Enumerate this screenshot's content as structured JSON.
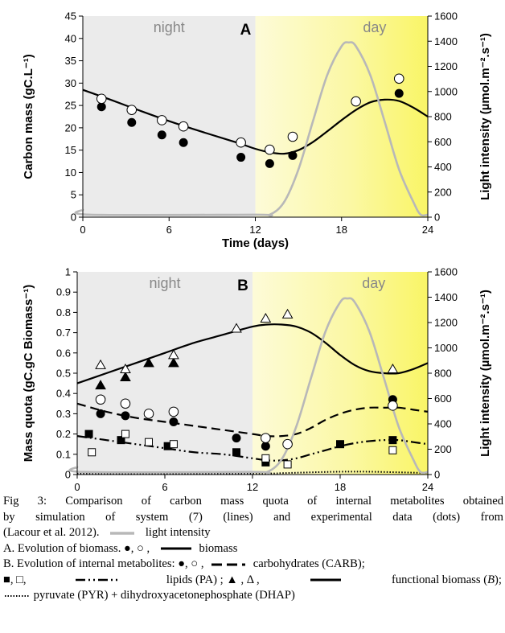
{
  "chart_data": [
    {
      "type": "line+scatter",
      "panel_label": "A",
      "regions": [
        {
          "label": "night",
          "x": [
            0,
            12
          ]
        },
        {
          "label": "day",
          "x": [
            12,
            24
          ]
        }
      ],
      "xlabel": "Time (days)",
      "ylabel": "Carbon mass (gC.L⁻¹)",
      "y2label": "Light intensity (µmol.m⁻².s⁻¹)",
      "xlim": [
        0,
        24
      ],
      "ylim": [
        0,
        45
      ],
      "y2lim": [
        0,
        1600
      ],
      "xticks": [
        0,
        6,
        12,
        18,
        24
      ],
      "yticks": [
        0,
        5,
        10,
        15,
        20,
        25,
        30,
        35,
        40,
        45
      ],
      "y2ticks": [
        0,
        200,
        400,
        600,
        800,
        1000,
        1200,
        1400,
        1600
      ],
      "series": [
        {
          "key": "biomass_sim",
          "kind": "line",
          "style": "solid",
          "color": "#000000",
          "axis": "left",
          "x": [
            0,
            2,
            4,
            6,
            8,
            10,
            11,
            12,
            13,
            14,
            15,
            16,
            17,
            18,
            19,
            20,
            21,
            22,
            23,
            24
          ],
          "y": [
            28.5,
            26.2,
            23.8,
            21.5,
            19.4,
            17.4,
            16.4,
            15.3,
            14.5,
            14.2,
            15.0,
            16.8,
            19.2,
            21.7,
            24.0,
            25.7,
            26.3,
            26.0,
            24.5,
            22.5
          ]
        },
        {
          "key": "biomass_obs_filled",
          "kind": "scatter",
          "marker": "circle-filled",
          "axis": "left",
          "x": [
            1.3,
            3.4,
            5.5,
            7.0,
            11.0,
            13.0,
            14.6,
            22.0
          ],
          "y": [
            24.7,
            21.2,
            18.4,
            16.7,
            13.4,
            12.0,
            13.8,
            27.7
          ]
        },
        {
          "key": "biomass_obs_open",
          "kind": "scatter",
          "marker": "circle-open",
          "axis": "left",
          "x": [
            1.3,
            3.4,
            5.5,
            7.0,
            11.0,
            13.0,
            14.6,
            19.0,
            22.0
          ],
          "y": [
            26.5,
            24.0,
            21.7,
            20.3,
            16.7,
            15.1,
            18.0,
            25.9,
            31.0
          ]
        },
        {
          "key": "light_intensity",
          "kind": "line",
          "style": "solid",
          "color": "#b8b8b8",
          "axis": "right",
          "x": [
            0,
            0.5,
            12,
            13,
            14,
            15,
            16,
            17,
            18,
            18.5,
            19,
            20,
            21,
            22,
            23,
            23.5,
            24
          ],
          "y": [
            60,
            20,
            20,
            20,
            120,
            380,
            760,
            1130,
            1360,
            1390,
            1360,
            1130,
            760,
            380,
            120,
            20,
            20
          ]
        }
      ]
    },
    {
      "type": "line+scatter",
      "panel_label": "B",
      "regions": [
        {
          "label": "night",
          "x": [
            0,
            12
          ]
        },
        {
          "label": "day",
          "x": [
            12,
            24
          ]
        }
      ],
      "xlabel": "",
      "ylabel": "Mass quota (gC.gC Biomass⁻¹)",
      "y2label": "Light intensity (µmol.m⁻².s⁻¹)",
      "xlim": [
        0,
        24
      ],
      "ylim": [
        0,
        1
      ],
      "y2lim": [
        0,
        1600
      ],
      "xticks": [
        0,
        6,
        12,
        18,
        24
      ],
      "yticks": [
        0,
        0.1,
        0.2,
        0.3,
        0.4,
        0.5,
        0.6,
        0.7,
        0.8,
        0.9,
        1
      ],
      "y2ticks": [
        0,
        200,
        400,
        600,
        800,
        1000,
        1200,
        1400,
        1600
      ],
      "series": [
        {
          "key": "functional_sim",
          "kind": "line",
          "style": "solid",
          "color": "#000000",
          "axis": "left",
          "x": [
            0,
            2,
            4,
            6,
            8,
            10,
            12,
            13,
            14,
            15,
            16,
            17,
            18,
            19,
            20,
            21,
            22,
            23,
            24
          ],
          "y": [
            0.45,
            0.5,
            0.55,
            0.6,
            0.65,
            0.69,
            0.73,
            0.74,
            0.74,
            0.73,
            0.7,
            0.65,
            0.59,
            0.54,
            0.51,
            0.5,
            0.5,
            0.52,
            0.55
          ]
        },
        {
          "key": "carb_sim",
          "kind": "line",
          "style": "dashed",
          "color": "#000000",
          "axis": "left",
          "x": [
            0,
            2,
            4,
            6,
            8,
            10,
            12,
            13,
            14,
            15,
            16,
            17,
            18,
            19,
            20,
            21,
            22,
            23,
            24
          ],
          "y": [
            0.35,
            0.31,
            0.28,
            0.26,
            0.24,
            0.22,
            0.2,
            0.19,
            0.19,
            0.2,
            0.23,
            0.27,
            0.3,
            0.32,
            0.33,
            0.33,
            0.33,
            0.32,
            0.31
          ]
        },
        {
          "key": "lipids_sim",
          "kind": "line",
          "style": "dashdotdot",
          "color": "#000000",
          "axis": "left",
          "x": [
            0,
            2,
            4,
            6,
            8,
            10,
            12,
            13,
            14,
            15,
            16,
            17,
            18,
            19,
            20,
            21,
            22,
            23,
            24
          ],
          "y": [
            0.19,
            0.17,
            0.15,
            0.13,
            0.11,
            0.1,
            0.08,
            0.07,
            0.07,
            0.08,
            0.1,
            0.12,
            0.14,
            0.155,
            0.165,
            0.17,
            0.17,
            0.16,
            0.15
          ]
        },
        {
          "key": "pyr_dhap_sim",
          "kind": "line",
          "style": "dotted",
          "color": "#000000",
          "axis": "left",
          "x": [
            0,
            12,
            14,
            16,
            18,
            20,
            22,
            24
          ],
          "y": [
            0.005,
            0.005,
            0.007,
            0.011,
            0.014,
            0.014,
            0.011,
            0.008
          ]
        },
        {
          "key": "light_intensity",
          "kind": "line",
          "style": "solid",
          "color": "#b8b8b8",
          "axis": "right",
          "x": [
            0,
            0.5,
            12,
            13,
            14,
            15,
            16,
            17,
            18,
            18.5,
            19,
            20,
            21,
            22,
            23,
            23.5,
            24
          ],
          "y": [
            60,
            20,
            20,
            20,
            120,
            380,
            760,
            1130,
            1360,
            1390,
            1360,
            1130,
            760,
            380,
            120,
            20,
            20
          ]
        },
        {
          "key": "functional_obs_filled",
          "kind": "scatter",
          "marker": "triangle-filled",
          "axis": "left",
          "x": [
            1.6,
            3.3,
            4.9,
            6.6
          ],
          "y": [
            0.44,
            0.48,
            0.55,
            0.55
          ]
        },
        {
          "key": "functional_obs_open",
          "kind": "scatter",
          "marker": "triangle-open",
          "axis": "left",
          "x": [
            1.6,
            3.3,
            6.6,
            10.9,
            12.9,
            14.4,
            21.6
          ],
          "y": [
            0.54,
            0.52,
            0.59,
            0.72,
            0.77,
            0.79,
            0.52
          ]
        },
        {
          "key": "carb_obs_filled",
          "kind": "scatter",
          "marker": "circle-filled",
          "axis": "left",
          "x": [
            1.6,
            3.3,
            6.6,
            10.9,
            12.9,
            14.4,
            21.6
          ],
          "y": [
            0.3,
            0.29,
            0.26,
            0.18,
            0.14,
            0.15,
            0.37
          ]
        },
        {
          "key": "carb_obs_open",
          "kind": "scatter",
          "marker": "circle-open",
          "axis": "left",
          "x": [
            1.6,
            3.3,
            4.9,
            6.6,
            12.9,
            14.4,
            21.6
          ],
          "y": [
            0.37,
            0.35,
            0.3,
            0.31,
            0.18,
            0.15,
            0.34
          ]
        },
        {
          "key": "lipids_obs_filled",
          "kind": "scatter",
          "marker": "square-filled",
          "axis": "left",
          "x": [
            0.8,
            3.0,
            6.2,
            10.9,
            12.9,
            18.0,
            21.6
          ],
          "y": [
            0.2,
            0.17,
            0.14,
            0.11,
            0.06,
            0.15,
            0.17
          ]
        },
        {
          "key": "lipids_obs_open",
          "kind": "scatter",
          "marker": "square-open",
          "axis": "left",
          "x": [
            1.0,
            3.3,
            4.9,
            6.6,
            12.9,
            14.4,
            21.6
          ],
          "y": [
            0.11,
            0.2,
            0.16,
            0.15,
            0.08,
            0.05,
            0.12
          ]
        }
      ]
    }
  ],
  "caption": {
    "line1": "Fig 3: Comparison of carbon mass quota of internal metabolites obtained",
    "line2": "by simulation of system (7) (lines) and experimental data (dots) from",
    "line3a": "(Lacour et al. 2012).",
    "line3b": "light intensity",
    "line4a": "A. Evolution of biomass. ●, ○ ,",
    "line4b": "biomass",
    "line5a": "B. Evolution of internal metabolites: ●, ○ ,",
    "line5b": "carbohydrates (CARB);",
    "line6a": "■, □,",
    "line6b": "lipids (PA) ; ▲ , Δ ,",
    "line6c": "functional biomass (",
    "line6d": "B",
    "line6e": ");",
    "line7": "pyruvate (PYR) + dihydroxyacetonephosphate (DHAP)"
  },
  "colors": {
    "night_bg": "#ebebeb",
    "day_bg_light": "#fdfbd8",
    "day_bg_strong": "#f9f566",
    "light_line": "#b8b8b8",
    "region_text": "#888888"
  }
}
